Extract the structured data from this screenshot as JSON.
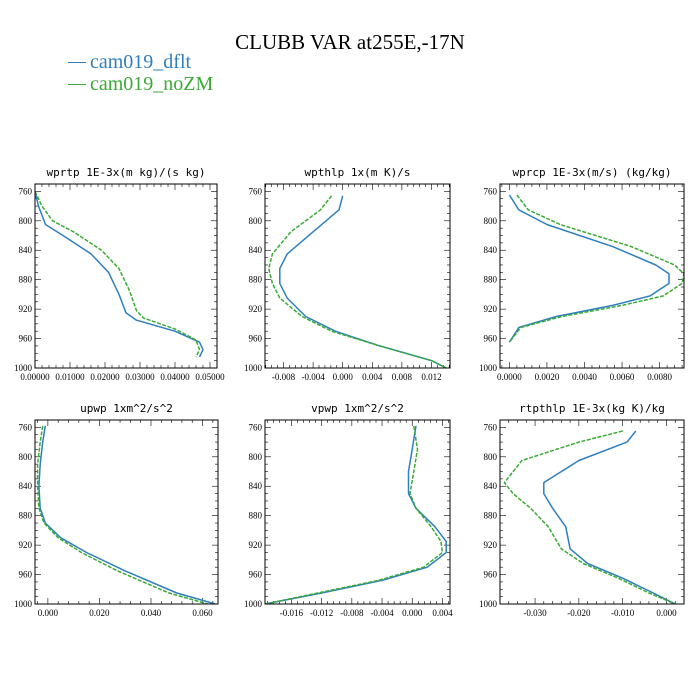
{
  "title": "CLUBB VAR at255E,-17N",
  "legend": [
    {
      "name": "cam019_dflt",
      "color": "#2f7fbf"
    },
    {
      "name": "cam019_noZM",
      "color": "#3aaa35"
    }
  ],
  "chart_data": [
    {
      "type": "line",
      "title": "wprtp  1E-3x(m kg)/(s kg)",
      "xlim": [
        0.0,
        0.052
      ],
      "ylim": [
        750,
        1000
      ],
      "y_inverted": true,
      "xticks": [
        0.0,
        0.01,
        0.02,
        0.03,
        0.04,
        0.05
      ],
      "xtick_labels": [
        "0.00000",
        "0.01000",
        "0.02000",
        "0.03000",
        "0.04000",
        "0.05000"
      ],
      "yticks": [
        760,
        800,
        840,
        880,
        920,
        960,
        1000
      ],
      "series": [
        {
          "name": "cam019_dflt",
          "x": [
            0.0,
            0.001,
            0.003,
            0.008,
            0.016,
            0.021,
            0.024,
            0.026,
            0.029,
            0.04,
            0.047,
            0.048,
            0.047
          ],
          "y": [
            760,
            780,
            805,
            820,
            845,
            870,
            900,
            925,
            935,
            950,
            965,
            975,
            985
          ]
        },
        {
          "name": "cam019_noZM",
          "x": [
            0.0,
            0.002,
            0.005,
            0.011,
            0.019,
            0.024,
            0.027,
            0.029,
            0.031,
            0.04,
            0.046,
            0.047,
            0.046
          ],
          "y": [
            760,
            780,
            800,
            815,
            840,
            865,
            895,
            922,
            932,
            947,
            962,
            975,
            985
          ]
        }
      ]
    },
    {
      "type": "line",
      "title": "wpthlp  1x(m K)/s",
      "xlim": [
        -0.0105,
        0.0145
      ],
      "ylim": [
        750,
        1000
      ],
      "y_inverted": true,
      "xticks": [
        -0.008,
        -0.004,
        0.0,
        0.004,
        0.008,
        0.012
      ],
      "xtick_labels": [
        "-0.008",
        "-0.004",
        "0.000",
        "0.004",
        "0.008",
        "0.012"
      ],
      "yticks": [
        760,
        800,
        840,
        880,
        920,
        960,
        1000
      ],
      "series": [
        {
          "name": "cam019_dflt",
          "x": [
            0.0,
            -0.0005,
            -0.004,
            -0.0075,
            -0.0085,
            -0.0085,
            -0.0075,
            -0.005,
            -0.001,
            0.005,
            0.012,
            0.014
          ],
          "y": [
            766,
            785,
            815,
            845,
            865,
            885,
            905,
            930,
            950,
            970,
            990,
            1000
          ]
        },
        {
          "name": "cam019_noZM",
          "x": [
            -0.0015,
            -0.003,
            -0.007,
            -0.0095,
            -0.01,
            -0.0095,
            -0.0085,
            -0.0055,
            -0.0015,
            0.005,
            0.012,
            0.014
          ],
          "y": [
            766,
            785,
            815,
            845,
            865,
            885,
            905,
            930,
            950,
            970,
            990,
            1000
          ]
        }
      ]
    },
    {
      "type": "line",
      "title": "wprcp  1E-3x(m/s) (kg/kg)",
      "xlim": [
        -0.0005,
        0.0093
      ],
      "ylim": [
        750,
        1000
      ],
      "y_inverted": true,
      "xticks": [
        0.0,
        0.002,
        0.004,
        0.006,
        0.008
      ],
      "xtick_labels": [
        "0.0000",
        "0.0020",
        "0.0040",
        "0.0060",
        "0.0080"
      ],
      "yticks": [
        760,
        800,
        840,
        880,
        920,
        960,
        1000
      ],
      "series": [
        {
          "name": "cam019_dflt",
          "x": [
            0.0,
            0.0005,
            0.002,
            0.0055,
            0.0078,
            0.0085,
            0.0085,
            0.0075,
            0.0055,
            0.0025,
            0.0005,
            0.0
          ],
          "y": [
            765,
            785,
            805,
            835,
            860,
            872,
            885,
            902,
            915,
            930,
            945,
            965
          ]
        },
        {
          "name": "cam019_noZM",
          "x": [
            0.0004,
            0.001,
            0.0027,
            0.0065,
            0.0088,
            0.0093,
            0.0092,
            0.0082,
            0.006,
            0.0028,
            0.0006,
            0.0
          ],
          "y": [
            765,
            785,
            805,
            835,
            860,
            872,
            885,
            902,
            915,
            930,
            945,
            965
          ]
        }
      ]
    },
    {
      "type": "line",
      "title": "upwp  1xm^2/s^2",
      "xlim": [
        -0.005,
        0.066
      ],
      "ylim": [
        750,
        1000
      ],
      "y_inverted": true,
      "xticks": [
        0.0,
        0.02,
        0.04,
        0.06
      ],
      "xtick_labels": [
        "0.000",
        "0.020",
        "0.040",
        "0.060"
      ],
      "yticks": [
        760,
        800,
        840,
        880,
        920,
        960,
        1000
      ],
      "series": [
        {
          "name": "cam019_dflt",
          "x": [
            -0.001,
            -0.002,
            -0.003,
            -0.0035,
            -0.003,
            -0.001,
            0.005,
            0.015,
            0.03,
            0.05,
            0.065
          ],
          "y": [
            758,
            780,
            810,
            840,
            870,
            890,
            910,
            930,
            955,
            985,
            1000
          ]
        },
        {
          "name": "cam019_noZM",
          "x": [
            -0.002,
            -0.003,
            -0.004,
            -0.004,
            -0.0035,
            -0.0015,
            0.004,
            0.013,
            0.027,
            0.047,
            0.062
          ],
          "y": [
            758,
            780,
            810,
            840,
            870,
            890,
            910,
            930,
            955,
            985,
            1000
          ]
        }
      ]
    },
    {
      "type": "line",
      "title": "vpwp  1xm^2/s^2",
      "xlim": [
        -0.0195,
        0.005
      ],
      "ylim": [
        750,
        1000
      ],
      "y_inverted": true,
      "xticks": [
        -0.016,
        -0.012,
        -0.008,
        -0.004,
        0.0,
        0.004
      ],
      "xtick_labels": [
        "-0.016",
        "-0.012",
        "-0.008",
        "-0.004",
        "0.000",
        "0.004"
      ],
      "yticks": [
        760,
        800,
        840,
        880,
        920,
        960,
        1000
      ],
      "series": [
        {
          "name": "cam019_dflt",
          "x": [
            0.0005,
            0.0,
            -0.0005,
            -0.0005,
            0.0005,
            0.003,
            0.0045,
            0.0045,
            0.002,
            -0.004,
            -0.012,
            -0.0195
          ],
          "y": [
            758,
            790,
            820,
            850,
            870,
            895,
            915,
            930,
            950,
            968,
            985,
            1000
          ]
        },
        {
          "name": "cam019_noZM",
          "x": [
            0.0002,
            0.0007,
            0.0002,
            -0.0003,
            0.0005,
            0.0025,
            0.0038,
            0.004,
            0.0015,
            -0.0045,
            -0.0125,
            -0.0195
          ],
          "y": [
            758,
            790,
            820,
            850,
            870,
            895,
            915,
            930,
            950,
            968,
            985,
            1000
          ]
        }
      ]
    },
    {
      "type": "line",
      "title": "rtpthlp  1E-3x(kg K)/kg",
      "xlim": [
        -0.038,
        0.004
      ],
      "ylim": [
        750,
        1000
      ],
      "y_inverted": true,
      "xticks": [
        -0.03,
        -0.02,
        -0.01,
        0.0
      ],
      "xtick_labels": [
        "-0.030",
        "-0.020",
        "-0.010",
        "0.000"
      ],
      "yticks": [
        760,
        800,
        840,
        880,
        920,
        960,
        1000
      ],
      "series": [
        {
          "name": "cam019_dflt",
          "x": [
            -0.007,
            -0.009,
            -0.02,
            -0.028,
            -0.028,
            -0.026,
            -0.023,
            -0.022,
            -0.018,
            -0.01,
            -0.003,
            0.002
          ],
          "y": [
            765,
            780,
            805,
            835,
            850,
            870,
            895,
            925,
            945,
            965,
            985,
            1000
          ]
        },
        {
          "name": "cam019_noZM",
          "x": [
            -0.01,
            -0.02,
            -0.033,
            -0.037,
            -0.035,
            -0.031,
            -0.027,
            -0.024,
            -0.019,
            -0.011,
            -0.004,
            0.002
          ],
          "y": [
            765,
            780,
            805,
            835,
            850,
            870,
            895,
            925,
            945,
            965,
            985,
            1000
          ]
        }
      ]
    }
  ]
}
